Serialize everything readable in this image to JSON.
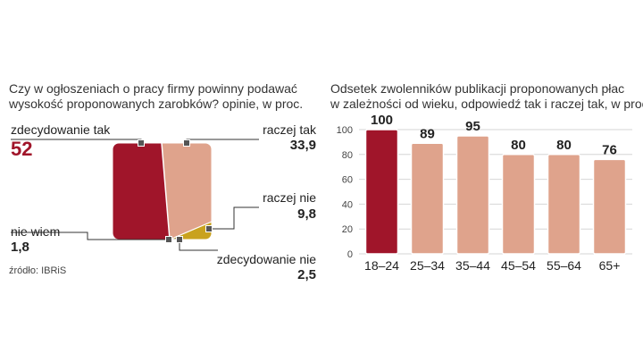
{
  "colors": {
    "dark_red": "#a0152a",
    "salmon": "#dfa38c",
    "mustard": "#c9a21e",
    "grey": "#b4b4b4",
    "marker": "#555555"
  },
  "pie_panel": {
    "title_line1": "Czy w ogłoszeniach o pracy firmy powinny podawać",
    "title_line2": "wysokość proponowanych zarobków? opinie, w proc.",
    "source": "źródło: IBRiS"
  },
  "bar_panel": {
    "title_line1": "Odsetek zwolenników publikacji proponowanych płac",
    "title_line2": "w zależności od wieku, odpowiedź tak i raczej tak, w proc."
  },
  "chart_data": [
    {
      "type": "pie",
      "title": "Czy w ogłoszeniach o pracy firmy powinny podawać wysokość proponowanych zarobków? opinie, w proc.",
      "slices": [
        {
          "label": "zdecydowanie tak",
          "value": 52,
          "display": "52",
          "color": "#a0152a"
        },
        {
          "label": "raczej tak",
          "value": 33.9,
          "display": "33,9",
          "color": "#dfa38c"
        },
        {
          "label": "raczej nie",
          "value": 9.8,
          "display": "9,8",
          "color": "#c9a21e"
        },
        {
          "label": "zdecydowanie nie",
          "value": 2.5,
          "display": "2,5",
          "color": "#9a9a9a"
        },
        {
          "label": "nie wiem",
          "value": 1.8,
          "display": "1,8",
          "color": "#c8c8c8"
        }
      ]
    },
    {
      "type": "bar",
      "title": "Odsetek zwolenników publikacji proponowanych płac w zależności od wieku, odpowiedź tak i raczej tak, w proc.",
      "categories": [
        "18–24",
        "25–34",
        "35–44",
        "45–54",
        "55–64",
        "65+"
      ],
      "values": [
        100,
        89,
        95,
        80,
        80,
        76
      ],
      "highlight_index": 0,
      "ylim": [
        0,
        100
      ],
      "yticks": [
        0,
        20,
        40,
        60,
        80,
        100
      ],
      "grid": true
    }
  ]
}
